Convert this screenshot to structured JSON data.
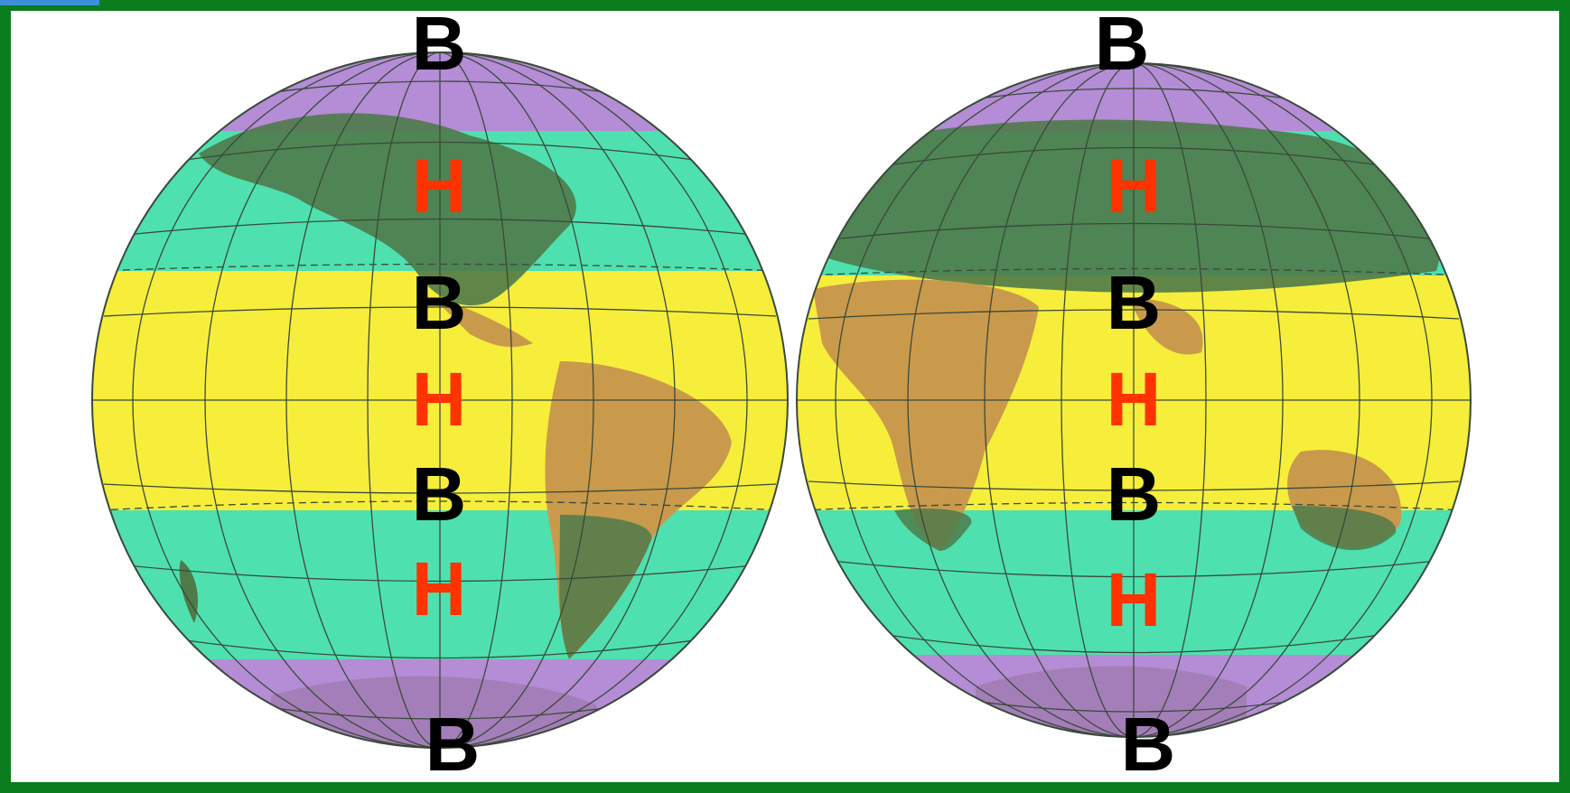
{
  "map": {
    "west_hemisphere": {
      "labels": [
        "B",
        "H",
        "B",
        "H",
        "B",
        "H",
        "B"
      ],
      "label_colors": [
        "#000000",
        "#ff3300",
        "#000000",
        "#ff3300",
        "#000000",
        "#ff3300",
        "#000000"
      ]
    },
    "east_hemisphere": {
      "labels": [
        "B",
        "H",
        "B",
        "H",
        "B",
        "H",
        "B"
      ],
      "label_colors": [
        "#000000",
        "#ff3300",
        "#000000",
        "#ff3300",
        "#000000",
        "#ff3300",
        "#000000"
      ]
    },
    "zone_colors": {
      "polar": "#b58cd6",
      "temperate": "#4fe0b0",
      "tropical": "#f6ee3a",
      "land_temperate": "#4f7a4a",
      "land_tropical": "#c99a4c",
      "frame": "#0a7d1e"
    }
  }
}
